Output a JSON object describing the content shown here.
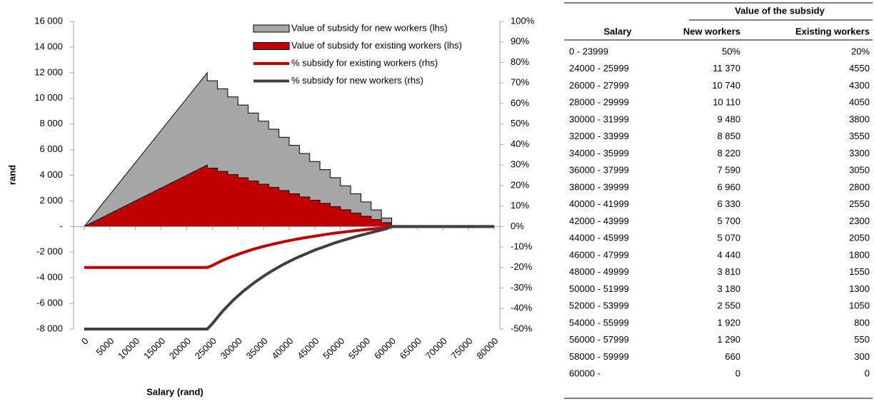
{
  "chart_data": {
    "type": "area_line",
    "ylabel": "rand",
    "xlabel": "Salary (rand)",
    "xlim": [
      0,
      80000
    ],
    "xticks": [
      0,
      5000,
      10000,
      15000,
      20000,
      25000,
      30000,
      35000,
      40000,
      45000,
      50000,
      55000,
      60000,
      65000,
      70000,
      75000,
      80000
    ],
    "ylim": [
      -8000,
      16000
    ],
    "yticks": [
      {
        "value": -8000,
        "label": "-8 000"
      },
      {
        "value": -6000,
        "label": "-6 000"
      },
      {
        "value": -4000,
        "label": "-4 000"
      },
      {
        "value": -2000,
        "label": "-2 000"
      },
      {
        "value": 0,
        "label": "-"
      },
      {
        "value": 2000,
        "label": "2 000"
      },
      {
        "value": 4000,
        "label": "4 000"
      },
      {
        "value": 6000,
        "label": "6 000"
      },
      {
        "value": 8000,
        "label": "8 000"
      },
      {
        "value": 10000,
        "label": "10 000"
      },
      {
        "value": 12000,
        "label": "12 000"
      },
      {
        "value": 14000,
        "label": "14 000"
      },
      {
        "value": 16000,
        "label": "16 000"
      }
    ],
    "y2lim": [
      -50,
      100
    ],
    "y2ticks": [
      {
        "value": -50,
        "label": "-50%"
      },
      {
        "value": -40,
        "label": "-40%"
      },
      {
        "value": -30,
        "label": "-30%"
      },
      {
        "value": -20,
        "label": "-20%"
      },
      {
        "value": -10,
        "label": "-10%"
      },
      {
        "value": 0,
        "label": "0%"
      },
      {
        "value": 10,
        "label": "10%"
      },
      {
        "value": 20,
        "label": "20%"
      },
      {
        "value": 30,
        "label": "30%"
      },
      {
        "value": 40,
        "label": "40%"
      },
      {
        "value": 50,
        "label": "50%"
      },
      {
        "value": 60,
        "label": "60%"
      },
      {
        "value": 70,
        "label": "70%"
      },
      {
        "value": 80,
        "label": "80%"
      },
      {
        "value": 90,
        "label": "90%"
      },
      {
        "value": 100,
        "label": "100%"
      }
    ],
    "legend": "upper right",
    "series": [
      {
        "name": "Value of subsidy for new workers (lhs)",
        "kind": "area",
        "color": "#a6a6a6",
        "x": [
          0,
          24000,
          24000,
          26000,
          26000,
          28000,
          28000,
          30000,
          30000,
          32000,
          32000,
          34000,
          34000,
          36000,
          36000,
          38000,
          38000,
          40000,
          40000,
          42000,
          42000,
          44000,
          44000,
          46000,
          46000,
          48000,
          48000,
          50000,
          50000,
          52000,
          52000,
          54000,
          54000,
          56000,
          56000,
          58000,
          58000,
          60000,
          60000,
          80000
        ],
        "values": [
          0,
          12000,
          11370,
          11370,
          10740,
          10740,
          10110,
          10110,
          9480,
          9480,
          8850,
          8850,
          8220,
          8220,
          7590,
          7590,
          6960,
          6960,
          6330,
          6330,
          5700,
          5700,
          5070,
          5070,
          4440,
          4440,
          3810,
          3810,
          3180,
          3180,
          2550,
          2550,
          1920,
          1920,
          1290,
          1290,
          660,
          660,
          0,
          0
        ]
      },
      {
        "name": "Value of subsidy for existing workers (lhs)",
        "kind": "area",
        "color": "#c00000",
        "x": [
          0,
          24000,
          24000,
          26000,
          26000,
          28000,
          28000,
          30000,
          30000,
          32000,
          32000,
          34000,
          34000,
          36000,
          36000,
          38000,
          38000,
          40000,
          40000,
          42000,
          42000,
          44000,
          44000,
          46000,
          46000,
          48000,
          48000,
          50000,
          50000,
          52000,
          52000,
          54000,
          54000,
          56000,
          56000,
          58000,
          58000,
          60000,
          60000,
          80000
        ],
        "values": [
          0,
          4800,
          4550,
          4550,
          4300,
          4300,
          4050,
          4050,
          3800,
          3800,
          3550,
          3550,
          3300,
          3300,
          3050,
          3050,
          2800,
          2800,
          2550,
          2550,
          2300,
          2300,
          2050,
          2050,
          1800,
          1800,
          1550,
          1550,
          1300,
          1300,
          1050,
          1050,
          800,
          800,
          550,
          550,
          300,
          300,
          0,
          0
        ]
      },
      {
        "name": "% subsidy for existing workers (rhs)",
        "kind": "line",
        "axis": "y2",
        "color": "#c00000",
        "x": [
          0,
          24000,
          25000,
          27000,
          29000,
          31000,
          33000,
          35000,
          37000,
          39000,
          41000,
          43000,
          45000,
          47000,
          49000,
          51000,
          53000,
          55000,
          57000,
          59000,
          60000,
          80000
        ],
        "values": [
          -20,
          -20,
          -19.0,
          -16.5,
          -14.5,
          -12.7,
          -11.1,
          -9.7,
          -8.5,
          -7.4,
          -6.4,
          -5.5,
          -4.7,
          -3.9,
          -3.2,
          -2.6,
          -2.0,
          -1.5,
          -1.0,
          -0.5,
          0,
          0
        ]
      },
      {
        "name": "% subsidy for new workers (rhs)",
        "kind": "line",
        "axis": "y2",
        "color": "#404040",
        "x": [
          0,
          24000,
          25000,
          27000,
          29000,
          31000,
          33000,
          35000,
          37000,
          39000,
          41000,
          43000,
          45000,
          47000,
          49000,
          51000,
          53000,
          55000,
          57000,
          59000,
          60000,
          80000
        ],
        "values": [
          -50,
          -50,
          -47.4,
          -41.3,
          -36.1,
          -31.6,
          -27.7,
          -24.2,
          -21.1,
          -18.3,
          -15.8,
          -13.6,
          -11.5,
          -9.7,
          -7.9,
          -6.4,
          -4.9,
          -3.6,
          -2.3,
          -1.1,
          0,
          0
        ]
      }
    ]
  },
  "table": {
    "group_header": "Value of the subsidy",
    "columns": [
      "Salary",
      "New workers",
      "Existing workers"
    ],
    "rows": [
      [
        "0 - 23999",
        "50%",
        "20%"
      ],
      [
        "24000 - 25999",
        "11 370",
        "4550"
      ],
      [
        "26000 - 27999",
        "10 740",
        "4300"
      ],
      [
        "28000 - 29999",
        "10 110",
        "4050"
      ],
      [
        "30000 - 31999",
        "9 480",
        "3800"
      ],
      [
        "32000 - 33999",
        "8 850",
        "3550"
      ],
      [
        "34000 - 35999",
        "8 220",
        "3300"
      ],
      [
        "36000 - 37999",
        "7 590",
        "3050"
      ],
      [
        "38000 - 39999",
        "6 960",
        "2800"
      ],
      [
        "40000 - 41999",
        "6 330",
        "2550"
      ],
      [
        "42000 - 43999",
        "5 700",
        "2300"
      ],
      [
        "44000 - 45999",
        "5 070",
        "2050"
      ],
      [
        "46000 - 47999",
        "4 440",
        "1800"
      ],
      [
        "48000 - 49999",
        "3 810",
        "1550"
      ],
      [
        "50000 - 51999",
        "3 180",
        "1300"
      ],
      [
        "52000 - 53999",
        "2 550",
        "1050"
      ],
      [
        "54000 - 55999",
        "1 920",
        "800"
      ],
      [
        "56000 - 57999",
        "1 290",
        "550"
      ],
      [
        "58000 - 59999",
        "660",
        "300"
      ],
      [
        "60000 -",
        "0",
        "0"
      ]
    ]
  }
}
